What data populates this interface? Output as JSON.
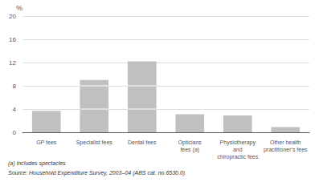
{
  "chart_data": {
    "type": "bar",
    "categories": [
      "GP fees",
      "Specialist fees",
      "Dental fees",
      "Opticians\nfees (a)",
      "Physiotherapy\nand\nchiropractic fees",
      "Other health\npractitioner's fees"
    ],
    "values": [
      3.7,
      9.0,
      12.2,
      3.1,
      2.9,
      0.9
    ],
    "segment_lines": [
      [],
      [
        4.0,
        8.0
      ],
      [
        4.0,
        8.0
      ],
      [],
      [],
      []
    ],
    "color": "#c0c0c0",
    "ylabel": "%",
    "ylim": [
      0,
      20
    ],
    "yticks": [
      0,
      4,
      8,
      12,
      16,
      20
    ],
    "grid": true,
    "annotations": [
      "(a) Includes spectacles",
      "Source: Household Expenditure Survey, 2003–04 (ABS cat. no.6530.0)"
    ]
  }
}
